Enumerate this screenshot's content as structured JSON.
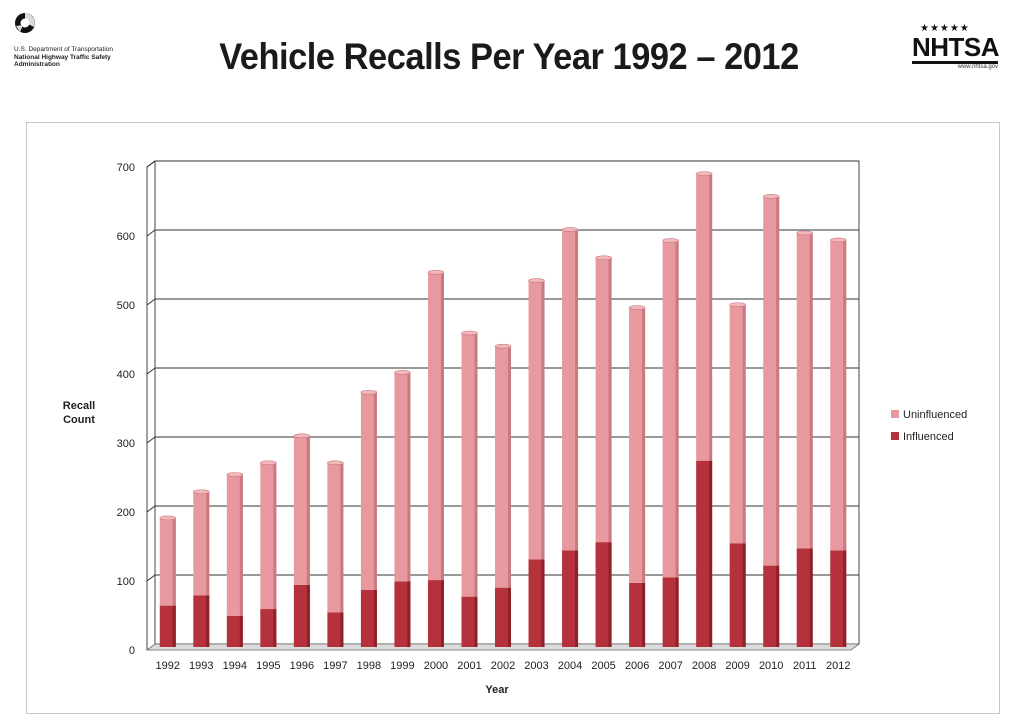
{
  "header": {
    "title": "Vehicle Recalls Per Year 1992 – 2012",
    "dot_logo": {
      "icon": "dot-triskelion-icon",
      "line1": "U.S. Department of Transportation",
      "line2": "National Highway Traffic Safety",
      "line3": "Administration"
    },
    "nhtsa_logo": {
      "stars": "★★★★★",
      "wordmark": "NHTSA",
      "tagline": "www.nhtsa.gov",
      "url": "www.nhtsa.gov"
    }
  },
  "chart_data": {
    "type": "bar",
    "stacked": true,
    "title": "Vehicle Recalls Per Year 1992 – 2012",
    "xlabel": "Year",
    "ylabel": "Recall Count",
    "ylim": [
      0,
      700
    ],
    "yticks": [
      0,
      100,
      200,
      300,
      400,
      500,
      600,
      700
    ],
    "grid": true,
    "legend_position": "right",
    "categories": [
      "1992",
      "1993",
      "1994",
      "1995",
      "1996",
      "1997",
      "1998",
      "1999",
      "2000",
      "2001",
      "2002",
      "2003",
      "2004",
      "2005",
      "2006",
      "2007",
      "2008",
      "2009",
      "2010",
      "2011",
      "2012"
    ],
    "series": [
      {
        "name": "Influenced",
        "color": "#b5313b",
        "values": [
          60,
          75,
          45,
          55,
          90,
          50,
          83,
          95,
          97,
          73,
          86,
          127,
          140,
          152,
          93,
          101,
          270,
          150,
          118,
          143,
          140
        ]
      },
      {
        "name": "Uninfluenced",
        "color": "#e8999f",
        "values": [
          127,
          150,
          205,
          212,
          216,
          217,
          286,
          303,
          446,
          382,
          350,
          404,
          465,
          412,
          399,
          488,
          416,
          346,
          535,
          457,
          450
        ]
      }
    ]
  }
}
